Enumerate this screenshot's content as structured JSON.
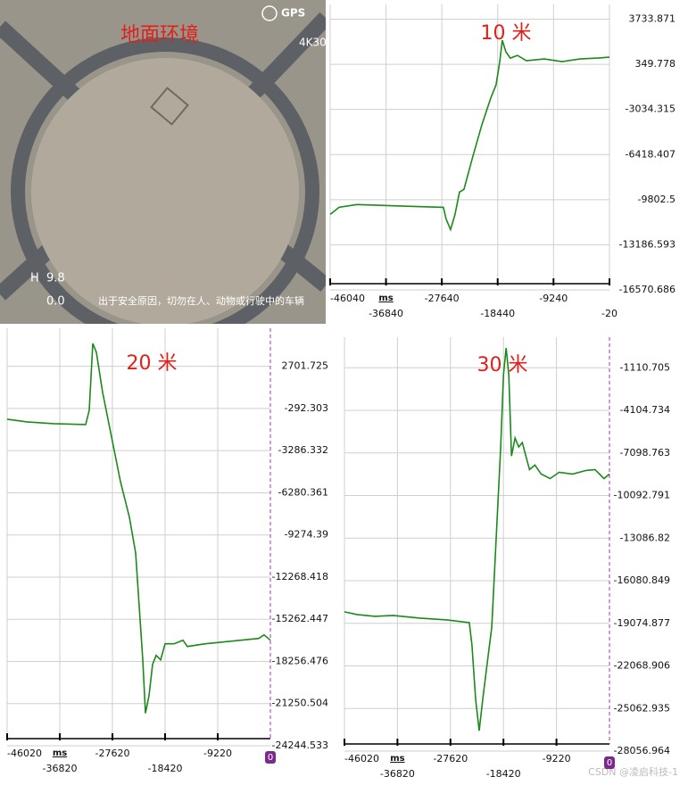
{
  "photo": {
    "caption": "地面环境",
    "gps": "GPS",
    "mode": "4K30",
    "height_label": "H",
    "height": "9.8",
    "speed": "0.0",
    "warning": "出于安全原因，切勿在人、动物或行驶中的车辆"
  },
  "watermark": "CSDN @凌启科技-1",
  "chart_data": [
    {
      "type": "line",
      "title": "10 米",
      "x_label": "ms",
      "color": "#1a8a1a",
      "grid": true,
      "x": [
        -46040,
        -44570,
        -41631,
        -37222,
        -32814,
        -27376,
        -26935,
        -26200,
        -25466,
        -24731,
        -23996,
        -22526,
        -21057,
        -19587,
        -18705,
        -18118,
        -17677,
        -17089,
        -16354,
        -15178,
        -13709,
        -10770,
        -7830,
        -4891,
        -1952,
        -20
      ],
      "values": [
        -10908,
        -10372,
        -10171,
        -10238,
        -10305,
        -10372,
        -11243,
        -12047,
        -10908,
        -9232,
        -9031,
        -6552,
        -4207,
        -2196,
        -1191,
        484,
        2159,
        1288,
        819,
        1020,
        618,
        752,
        551,
        752,
        819,
        886
      ],
      "xlim": [
        -46040,
        -20
      ],
      "ylim": [
        -16570.686,
        4839
      ],
      "xticks": [
        -46040,
        -36840,
        -27640,
        -18440,
        -9240,
        -20
      ],
      "yticks": [
        3733.871,
        349.778,
        -3034.315,
        -6418.407,
        -9802.5,
        -13186.593,
        -16570.686
      ]
    },
    {
      "type": "line",
      "title": "20 米",
      "x_label": "ms",
      "color": "#1a8a1a",
      "grid": true,
      "cursor_label": "0",
      "x": [
        -46020,
        -42590,
        -37913,
        -32301,
        -31677,
        -31054,
        -30430,
        -29339,
        -27780,
        -26221,
        -24662,
        -23570,
        -22947,
        -22323,
        -21856,
        -21232,
        -20608,
        -19985,
        -19205,
        -18426,
        -16867,
        -15308,
        -14528,
        -11410,
        -8292,
        -5174,
        -2056,
        -1121,
        -20
      ],
      "values": [
        -1052,
        -1242,
        -1368,
        -1431,
        -419,
        4329,
        3696,
        847,
        -2318,
        -5483,
        -8015,
        -10547,
        -14345,
        -18143,
        -21941,
        -20675,
        -18459,
        -17826,
        -18143,
        -17003,
        -17003,
        -16750,
        -17193,
        -17003,
        -16877,
        -16750,
        -16623,
        -16370,
        -16750
      ],
      "xlim": [
        -46020,
        -20
      ],
      "ylim": [
        -24244.533,
        5405
      ],
      "xticks": [
        -46020,
        -36820,
        -27620,
        -18420,
        -9220
      ],
      "yticks": [
        2701.725,
        -292.303,
        -3286.332,
        -6280.361,
        -9274.39,
        -12268.418,
        -15262.447,
        -18256.476,
        -21250.504,
        -24244.533
      ]
    },
    {
      "type": "line",
      "title": "30 米",
      "x_label": "ms",
      "color": "#1a8a1a",
      "grid": true,
      "cursor_label": "0",
      "x": [
        -46020,
        -43837,
        -40720,
        -37602,
        -32924,
        -28247,
        -24350,
        -23882,
        -23259,
        -22635,
        -22011,
        -21232,
        -20452,
        -19673,
        -18893,
        -18426,
        -17958,
        -17490,
        -17023,
        -16399,
        -15776,
        -15152,
        -14528,
        -13905,
        -12969,
        -11878,
        -10319,
        -8760,
        -6422,
        -4083,
        -2524,
        -965,
        -20
      ],
      "values": [
        -18265,
        -18455,
        -18582,
        -18519,
        -18708,
        -18835,
        -19025,
        -20607,
        -24405,
        -26621,
        -24405,
        -21873,
        -19341,
        -13011,
        -6681,
        -1617,
        282,
        -1617,
        -7314,
        -6048,
        -6681,
        -6365,
        -7314,
        -8264,
        -7947,
        -8580,
        -8897,
        -8454,
        -8580,
        -8327,
        -8264,
        -8897,
        -8580
      ],
      "xlim": [
        -46020,
        -20
      ],
      "ylim": [
        -28056.964,
        1041
      ],
      "xticks": [
        -46020,
        -36820,
        -27620,
        -18420,
        -9220
      ],
      "yticks": [
        -1110.705,
        -4104.734,
        -7098.763,
        -10092.791,
        -13086.82,
        -16080.849,
        -19074.877,
        -22068.906,
        -25062.935,
        -28056.964
      ]
    }
  ]
}
